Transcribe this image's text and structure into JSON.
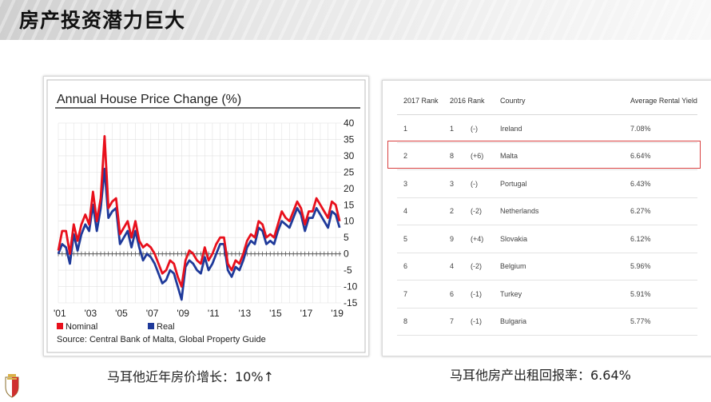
{
  "header": {
    "title": "房产投资潜力巨大"
  },
  "chart_data": {
    "type": "line",
    "title": "Annual  House Price Change (%)",
    "x": [
      2001.0,
      2001.25,
      2001.5,
      2001.75,
      2002.0,
      2002.25,
      2002.5,
      2002.75,
      2003.0,
      2003.25,
      2003.5,
      2003.75,
      2004.0,
      2004.25,
      2004.5,
      2004.75,
      2005.0,
      2005.25,
      2005.5,
      2005.75,
      2006.0,
      2006.25,
      2006.5,
      2006.75,
      2007.0,
      2007.25,
      2007.5,
      2007.75,
      2008.0,
      2008.25,
      2008.5,
      2008.75,
      2009.0,
      2009.25,
      2009.5,
      2009.75,
      2010.0,
      2010.25,
      2010.5,
      2010.75,
      2011.0,
      2011.25,
      2011.5,
      2011.75,
      2012.0,
      2012.25,
      2012.5,
      2012.75,
      2013.0,
      2013.25,
      2013.5,
      2013.75,
      2014.0,
      2014.25,
      2014.5,
      2014.75,
      2015.0,
      2015.25,
      2015.5,
      2015.75,
      2016.0,
      2016.25,
      2016.5,
      2016.75,
      2017.0,
      2017.25,
      2017.5,
      2017.75,
      2018.0,
      2018.25,
      2018.5,
      2018.75,
      2019.0,
      2019.25
    ],
    "series": [
      {
        "name": "Nominal",
        "color": "#e8101c",
        "values": [
          1,
          7,
          7,
          0,
          9,
          4,
          9,
          12,
          9,
          19,
          10,
          17,
          36,
          14,
          16,
          17,
          6,
          8,
          10,
          5,
          10,
          4,
          2,
          3,
          2,
          0,
          -3,
          -6,
          -5,
          -2,
          -3,
          -7,
          -10,
          -2,
          1,
          0,
          -2,
          -3,
          2,
          -2,
          0,
          3,
          5,
          5,
          -3,
          -5,
          -2,
          -3,
          0,
          4,
          6,
          5,
          10,
          9,
          5,
          6,
          5,
          9,
          13,
          11,
          10,
          13,
          16,
          14,
          9,
          13,
          13,
          17,
          15,
          13,
          11,
          16,
          15,
          10
        ],
        "color_name": "red"
      },
      {
        "name": "Real",
        "color": "#1f3a9a",
        "values": [
          0,
          3,
          2,
          -3,
          6,
          1,
          6,
          9,
          7,
          15,
          7,
          14,
          26,
          11,
          13,
          14,
          3,
          5,
          7,
          2,
          7,
          2,
          -2,
          0,
          -1,
          -3,
          -6,
          -9,
          -8,
          -5,
          -6,
          -10,
          -14,
          -4,
          -2,
          -3,
          -5,
          -6,
          -1,
          -5,
          -3,
          0,
          3,
          3,
          -5,
          -7,
          -4,
          -5,
          -2,
          2,
          4,
          3,
          8,
          7,
          3,
          4,
          3,
          7,
          10,
          9,
          8,
          11,
          14,
          12,
          7,
          11,
          11,
          14,
          12,
          10,
          8,
          13,
          12,
          8
        ],
        "color_name": "blue"
      }
    ],
    "x_tick_labels": [
      "'01",
      "'03",
      "'05",
      "'07",
      "'09",
      "'11",
      "'13",
      "'15",
      "'17",
      "'19"
    ],
    "y_tick_labels": [
      "40",
      "35",
      "30",
      "25",
      "20",
      "15",
      "10",
      "5",
      "0",
      "-5",
      "-10",
      "-15"
    ],
    "ylim": [
      -15,
      40
    ],
    "source": "Source: Central Bank of Malta, Global Property Guide",
    "grid": true,
    "legend_position": "bottom-left"
  },
  "rental_table": {
    "headers": [
      "2017 Rank",
      "2016 Rank",
      "Country",
      "Average Rental Yield"
    ],
    "rows": [
      {
        "rank2017": "1",
        "rank2016": "1",
        "change": "(-)",
        "country": "Ireland",
        "yield": "7.08%"
      },
      {
        "rank2017": "2",
        "rank2016": "8",
        "change": "(+6)",
        "country": "Malta",
        "yield": "6.64%"
      },
      {
        "rank2017": "3",
        "rank2016": "3",
        "change": "(-)",
        "country": "Portugal",
        "yield": "6.43%"
      },
      {
        "rank2017": "4",
        "rank2016": "2",
        "change": "(-2)",
        "country": "Netherlands",
        "yield": "6.27%"
      },
      {
        "rank2017": "5",
        "rank2016": "9",
        "change": "(+4)",
        "country": "Slovakia",
        "yield": "6.12%"
      },
      {
        "rank2017": "6",
        "rank2016": "4",
        "change": "(-2)",
        "country": "Belgium",
        "yield": "5.96%"
      },
      {
        "rank2017": "7",
        "rank2016": "6",
        "change": "(-1)",
        "country": "Turkey",
        "yield": "5.91%"
      },
      {
        "rank2017": "8",
        "rank2016": "7",
        "change": "(-1)",
        "country": "Bulgaria",
        "yield": "5.77%"
      }
    ],
    "highlight_color": "#d84040"
  },
  "captions": {
    "left": "马耳他近年房价增长：10%↑",
    "right": "马耳他房产出租回报率：6.64%"
  }
}
